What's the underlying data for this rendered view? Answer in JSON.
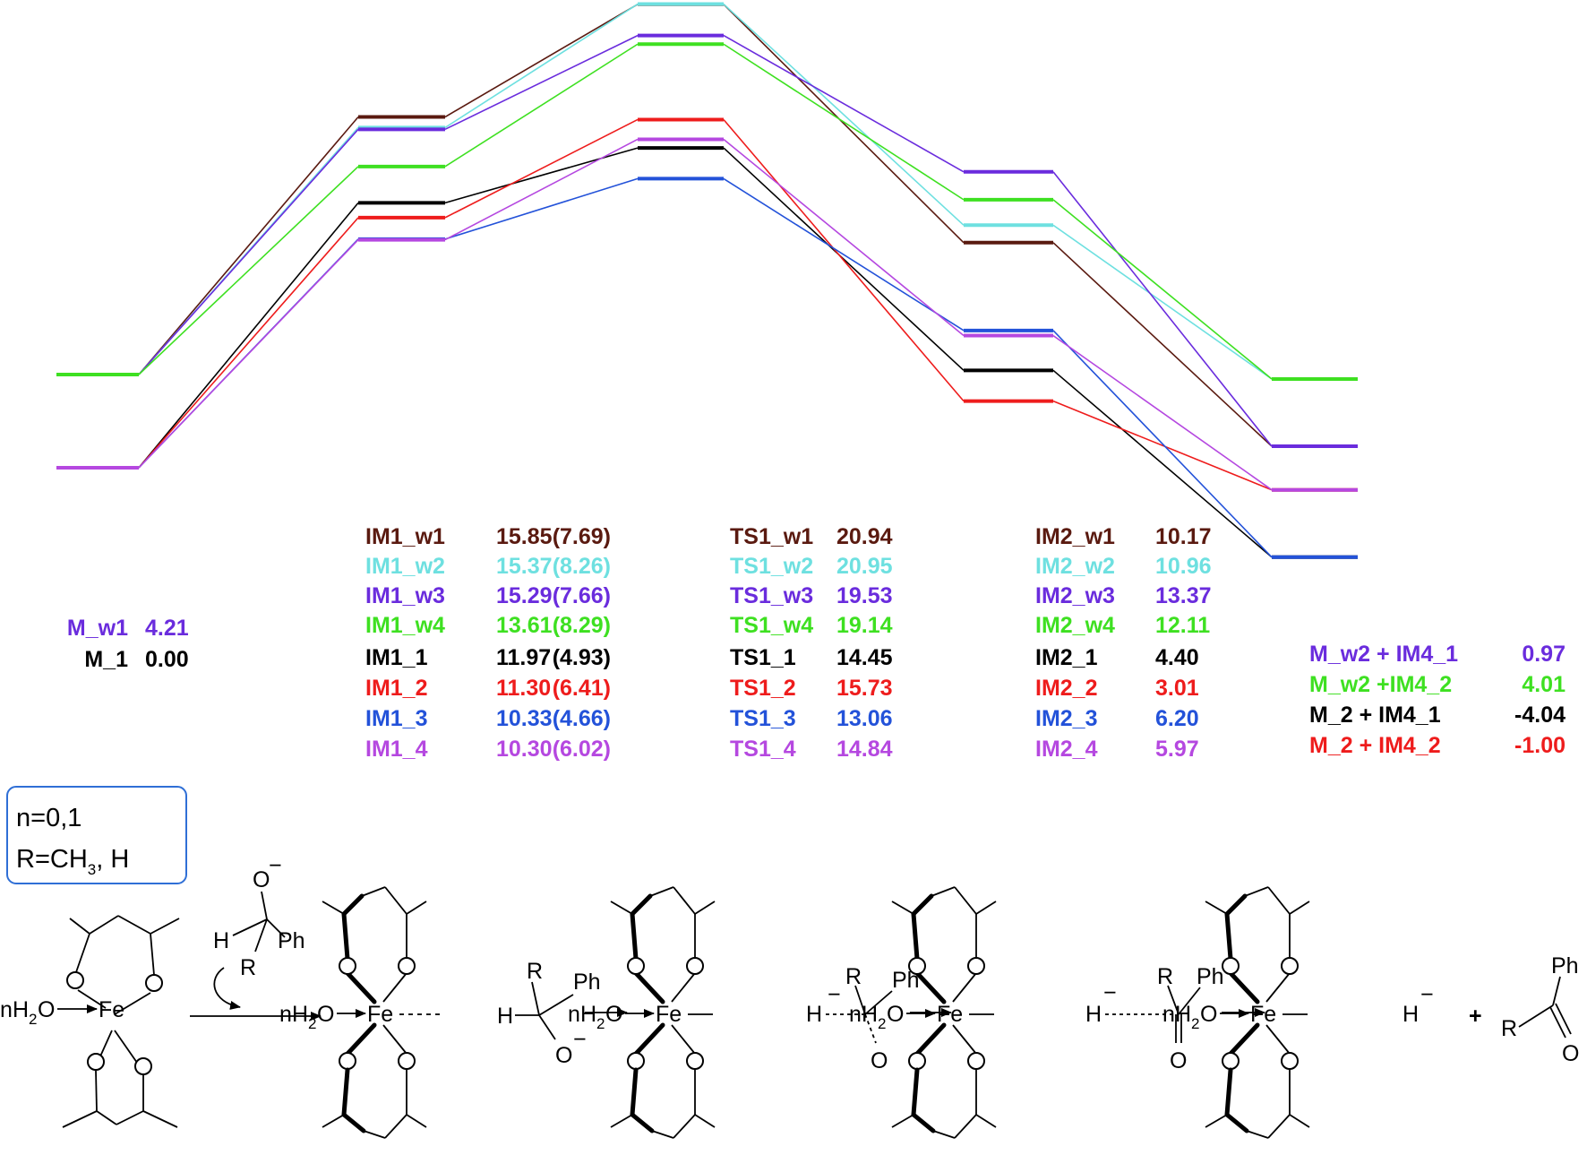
{
  "colors": {
    "w1": "#5a1a10",
    "w2": "#6ee0e0",
    "w3": "#6a2cdd",
    "w4": "#3ee021",
    "p1": "#000000",
    "p2": "#ee1c1c",
    "p3": "#2352d9",
    "p4": "#b548e0"
  },
  "chart_data": {
    "type": "energy-profile",
    "stages": [
      "M",
      "IM1",
      "TS1",
      "IM2",
      "M + IM4"
    ],
    "paths": [
      {
        "id": "w1",
        "energies": [
          4.21,
          15.85,
          20.94,
          10.17,
          0.97
        ]
      },
      {
        "id": "w2",
        "energies": [
          4.21,
          15.37,
          20.95,
          10.96,
          4.01
        ]
      },
      {
        "id": "w3",
        "energies": [
          4.21,
          15.29,
          19.53,
          13.37,
          0.97
        ]
      },
      {
        "id": "w4",
        "energies": [
          4.21,
          13.61,
          19.14,
          12.11,
          4.01
        ]
      },
      {
        "id": "p1",
        "energies": [
          0.0,
          11.97,
          14.45,
          4.4,
          -4.04
        ]
      },
      {
        "id": "p2",
        "energies": [
          0.0,
          11.3,
          15.73,
          3.01,
          -1.0
        ]
      },
      {
        "id": "p3",
        "energies": [
          0.0,
          10.33,
          13.06,
          6.2,
          -4.04
        ]
      },
      {
        "id": "p4",
        "energies": [
          0.0,
          10.3,
          14.84,
          5.97,
          -1.0
        ]
      }
    ]
  },
  "labels": {
    "m": [
      {
        "name": "M_w1",
        "value": "4.21",
        "color": "w3"
      },
      {
        "name": "M_1",
        "value": "0.00",
        "color": "p1"
      }
    ],
    "im1": [
      {
        "name": "IM1_w1",
        "value": "15.85",
        "paren": "(7.69)",
        "color": "w1"
      },
      {
        "name": "IM1_w2",
        "value": "15.37",
        "paren": "(8.26)",
        "color": "w2"
      },
      {
        "name": "IM1_w3",
        "value": "15.29",
        "paren": "(7.66)",
        "color": "w3"
      },
      {
        "name": "IM1_w4",
        "value": "13.61",
        "paren": "(8.29)",
        "color": "w4"
      },
      {
        "name": "IM1_1",
        "value": "11.97",
        "paren": "(4.93)",
        "color": "p1"
      },
      {
        "name": "IM1_2",
        "value": "11.30",
        "paren": "(6.41)",
        "color": "p2"
      },
      {
        "name": "IM1_3",
        "value": "10.33",
        "paren": "(4.66)",
        "color": "p3"
      },
      {
        "name": "IM1_4",
        "value": "10.30",
        "paren": "(6.02)",
        "color": "p4"
      }
    ],
    "ts1": [
      {
        "name": "TS1_w1",
        "value": "20.94",
        "color": "w1"
      },
      {
        "name": "TS1_w2",
        "value": "20.95",
        "color": "w2"
      },
      {
        "name": "TS1_w3",
        "value": "19.53",
        "color": "w3"
      },
      {
        "name": "TS1_w4",
        "value": "19.14",
        "color": "w4"
      },
      {
        "name": "TS1_1",
        "value": "14.45",
        "color": "p1"
      },
      {
        "name": "TS1_2",
        "value": "15.73",
        "color": "p2"
      },
      {
        "name": "TS1_3",
        "value": "13.06",
        "color": "p3"
      },
      {
        "name": "TS1_4",
        "value": "14.84",
        "color": "p4"
      }
    ],
    "im2": [
      {
        "name": "IM2_w1",
        "value": "10.17",
        "color": "w1"
      },
      {
        "name": "IM2_w2",
        "value": "10.96",
        "color": "w2"
      },
      {
        "name": "IM2_w3",
        "value": "13.37",
        "color": "w3"
      },
      {
        "name": "IM2_w4",
        "value": "12.11",
        "color": "w4"
      },
      {
        "name": "IM2_1",
        "value": "4.40",
        "color": "p1"
      },
      {
        "name": "IM2_2",
        "value": "3.01",
        "color": "p2"
      },
      {
        "name": "IM2_3",
        "value": "6.20",
        "color": "p3"
      },
      {
        "name": "IM2_4",
        "value": "5.97",
        "color": "p4"
      }
    ],
    "products": [
      {
        "name": "M_w2 + IM4_1",
        "value": "0.97",
        "color": "w3"
      },
      {
        "name": "M_w2 +IM4_2",
        "value": "4.01",
        "color": "w4"
      },
      {
        "name": "M_2 + IM4_1",
        "value": "-4.04",
        "color": "p1"
      },
      {
        "name": "M_2 + IM4_2",
        "value": "-1.00",
        "color": "p2"
      }
    ]
  },
  "note": {
    "line1": "n=0,1",
    "line2_prefix": "R=CH",
    "line2_sub": "3",
    "line2_suffix": ", H"
  },
  "scheme": {
    "n": "n",
    "h": "H",
    "o": "O",
    "fe": "Fe",
    "r": "R",
    "ph": "Ph",
    "two": "2",
    "minus": "−",
    "plus": "+"
  }
}
